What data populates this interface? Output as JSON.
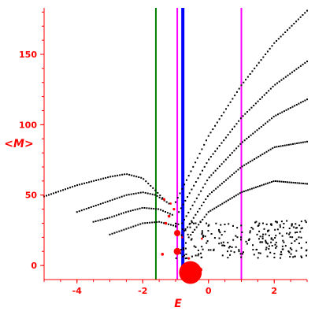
{
  "chart_data": {
    "type": "scatter",
    "title": "",
    "xlabel": "E",
    "ylabel": "<M>",
    "xlim": [
      -5.0,
      3.0
    ],
    "ylim": [
      -10,
      183
    ],
    "x_ticks": [
      -4,
      -2,
      0,
      2
    ],
    "y_ticks": [
      0,
      50,
      100,
      150
    ],
    "grid": false,
    "colors": {
      "axes": "#ff0000",
      "points": "#000000",
      "large_markers": "#ff0000",
      "green_line": "#008000",
      "blue_line": "#0000ff",
      "magenta_line": "#ff00ff"
    },
    "vertical_lines": [
      {
        "x": -1.6,
        "color": "#008000"
      },
      {
        "x": -0.95,
        "color": "#ff00ff"
      },
      {
        "x": -0.78,
        "color": "#0000ff"
      },
      {
        "x": 1.0,
        "color": "#ff00ff"
      }
    ],
    "rising_bands": [
      {
        "x": [
          -1.0,
          0.0,
          1.0,
          2.0,
          3.0
        ],
        "y": [
          45,
          92,
          128,
          158,
          181
        ]
      },
      {
        "x": [
          -0.9,
          0.0,
          1.0,
          2.0,
          3.0
        ],
        "y": [
          38,
          75,
          105,
          128,
          145
        ]
      },
      {
        "x": [
          -0.8,
          0.0,
          1.0,
          2.0,
          3.0
        ],
        "y": [
          30,
          62,
          87,
          106,
          118
        ]
      },
      {
        "x": [
          -0.7,
          0.0,
          1.0,
          2.0,
          3.0
        ],
        "y": [
          25,
          50,
          70,
          84,
          88
        ]
      },
      {
        "x": [
          -0.6,
          0.0,
          1.0,
          2.0,
          3.0
        ],
        "y": [
          20,
          38,
          52,
          60,
          58
        ]
      }
    ],
    "left_arcs": [
      {
        "x": [
          -5.0,
          -4.0,
          -3.0,
          -2.5,
          -2.0,
          -1.6,
          -1.4
        ],
        "y": [
          49,
          57,
          63,
          65,
          62,
          53,
          48
        ]
      },
      {
        "x": [
          -4.0,
          -3.5,
          -3.0,
          -2.5,
          -2.0,
          -1.6,
          -1.2
        ],
        "y": [
          38,
          42,
          46,
          50,
          52,
          50,
          44
        ]
      },
      {
        "x": [
          -3.5,
          -3.0,
          -2.5,
          -2.0,
          -1.5,
          -1.1
        ],
        "y": [
          31,
          34,
          38,
          41,
          40,
          36
        ]
      },
      {
        "x": [
          -3.0,
          -2.5,
          -2.0,
          -1.5,
          -1.0
        ],
        "y": [
          22,
          26,
          30,
          31,
          28
        ]
      }
    ],
    "noise_cloud": {
      "x_range": [
        -1.0,
        3.0
      ],
      "y_range": [
        5,
        32
      ],
      "count": 240
    },
    "large_markers": [
      {
        "x": -0.55,
        "y": -5,
        "size": 3.2
      },
      {
        "x": -0.95,
        "y": 10,
        "size": 1.0
      },
      {
        "x": -0.95,
        "y": 23,
        "size": 0.9
      },
      {
        "x": -0.25,
        "y": -3,
        "size": 0.6
      },
      {
        "x": -1.4,
        "y": 8,
        "size": 0.4
      },
      {
        "x": -1.3,
        "y": 30,
        "size": 0.4
      },
      {
        "x": -1.2,
        "y": 35,
        "size": 0.4
      },
      {
        "x": -1.05,
        "y": 40,
        "size": 0.35
      },
      {
        "x": -1.35,
        "y": 47,
        "size": 0.35
      },
      {
        "x": -0.6,
        "y": 5,
        "size": 0.35
      },
      {
        "x": -0.2,
        "y": 19,
        "size": 0.3
      },
      {
        "x": -0.8,
        "y": 20,
        "size": 0.3
      },
      {
        "x": -1.15,
        "y": 44,
        "size": 0.3
      }
    ]
  }
}
